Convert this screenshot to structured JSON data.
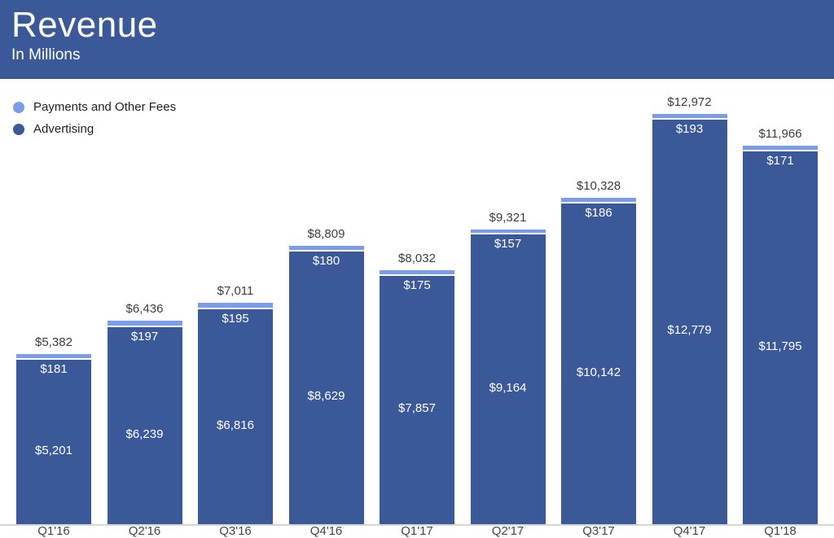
{
  "header": {
    "title": "Revenue",
    "subtitle": "In Millions",
    "bg_color": "#3b5998"
  },
  "legend": [
    {
      "label": "Payments and Other Fees",
      "color": "#7b9ce8"
    },
    {
      "label": "Advertising",
      "color": "#3b5998"
    }
  ],
  "chart_data": {
    "type": "bar",
    "stacked": true,
    "title": "Revenue",
    "subtitle": "In Millions",
    "value_prefix": "$",
    "categories": [
      "Q1'16",
      "Q2'16",
      "Q3'16",
      "Q4'16",
      "Q1'17",
      "Q2'17",
      "Q3'17",
      "Q4'17",
      "Q1'18"
    ],
    "series": [
      {
        "name": "Advertising",
        "color": "#3b5998",
        "values": [
          5201,
          6239,
          6816,
          8629,
          7857,
          9164,
          10142,
          12779,
          11795
        ]
      },
      {
        "name": "Payments and Other Fees",
        "color": "#7b9ce8",
        "values": [
          181,
          197,
          195,
          180,
          175,
          157,
          186,
          193,
          171
        ]
      }
    ],
    "totals": [
      5382,
      6436,
      7011,
      8809,
      8032,
      9321,
      10328,
      12972,
      11966
    ],
    "ylim": [
      0,
      13000
    ],
    "grid": false,
    "legend_position": "top-left",
    "total_labels_shown": true,
    "segment_labels_shown": true
  }
}
